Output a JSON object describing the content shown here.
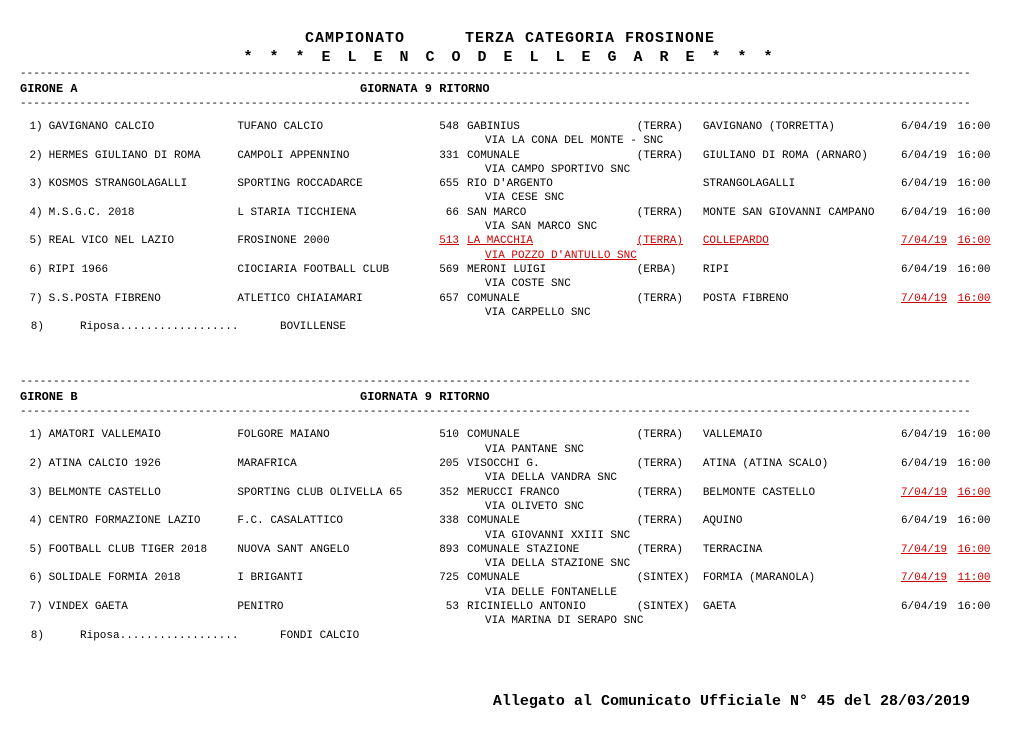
{
  "header": {
    "title_left": "CAMPIONATO",
    "title_right": "TERZA CATEGORIA FROSINONE",
    "subtitle": "* * * E L E N C O    D E L L E    G A R E * * *"
  },
  "dash": "------------------------------------------------------------------------------------------------------------------------------------------------",
  "footer": "Allegato al Comunicato Ufficiale N° 45 del 28/03/2019",
  "groups": [
    {
      "name": "GIRONE  A",
      "round": "GIORNATA  9 RITORNO",
      "matches": [
        {
          "n": "1)",
          "home": "GAVIGNANO CALCIO",
          "away": "TUFANO CALCIO",
          "code": "548",
          "venue": "GABINIUS",
          "surf": "(TERRA)",
          "city": "GAVIGNANO (TORRETTA)",
          "date": "6/04/19",
          "time": "16:00",
          "addr": "VIA LA CONA DEL MONTE - SNC",
          "hl": false,
          "hl_addr": false
        },
        {
          "n": "2)",
          "home": "HERMES GIULIANO DI ROMA",
          "away": "CAMPOLI APPENNINO",
          "code": "331",
          "venue": "COMUNALE",
          "surf": "(TERRA)",
          "city": "GIULIANO DI ROMA (ARNARO)",
          "date": "6/04/19",
          "time": "16:00",
          "addr": "VIA CAMPO SPORTIVO SNC",
          "hl": false,
          "hl_addr": false
        },
        {
          "n": "3)",
          "home": "KOSMOS STRANGOLAGALLI",
          "away": "SPORTING ROCCADARCE",
          "code": "655",
          "venue": "RIO D'ARGENTO",
          "surf": "",
          "city": "STRANGOLAGALLI",
          "date": "6/04/19",
          "time": "16:00",
          "addr": "VIA CESE SNC",
          "hl": false,
          "hl_addr": false
        },
        {
          "n": "4)",
          "home": "M.S.G.C. 2018",
          "away": "L STARIA TICCHIENA",
          "code": "66",
          "venue": "SAN MARCO",
          "surf": "(TERRA)",
          "city": "MONTE SAN GIOVANNI CAMPANO",
          "date": "6/04/19",
          "time": "16:00",
          "addr": "VIA SAN MARCO SNC",
          "hl": false,
          "hl_addr": false
        },
        {
          "n": "5)",
          "home": "REAL VICO NEL LAZIO",
          "away": "FROSINONE 2000",
          "code": "513",
          "venue": "LA MACCHIA",
          "surf": "(TERRA)",
          "city": "COLLEPARDO",
          "date": "7/04/19",
          "time": "16:00",
          "addr": "VIA POZZO D'ANTULLO SNC",
          "hl": true,
          "hl_addr": true
        },
        {
          "n": "6)",
          "home": "RIPI 1966",
          "away": "CIOCIARIA FOOTBALL CLUB",
          "code": "569",
          "venue": "MERONI LUIGI",
          "surf": "(ERBA)",
          "city": "RIPI",
          "date": "6/04/19",
          "time": "16:00",
          "addr": "VIA COSTE SNC",
          "hl": false,
          "hl_addr": false
        },
        {
          "n": "7)",
          "home": "S.S.POSTA FIBRENO",
          "away": "ATLETICO CHIAIAMARI",
          "code": "657",
          "venue": "COMUNALE",
          "surf": "(TERRA)",
          "city": "POSTA FIBRENO",
          "date": "7/04/19",
          "time": "16:00",
          "addr": "VIA CARPELLO SNC",
          "hl": false,
          "hl_addr": false,
          "hl_dt": true
        }
      ],
      "riposa": {
        "n": "8)",
        "label": "Riposa..................",
        "team": "BOVILLENSE"
      }
    },
    {
      "name": "GIRONE  B",
      "round": "GIORNATA  9 RITORNO",
      "matches": [
        {
          "n": "1)",
          "home": "AMATORI VALLEMAIO",
          "away": "FOLGORE MAIANO",
          "code": "510",
          "venue": "COMUNALE",
          "surf": "(TERRA)",
          "city": "VALLEMAIO",
          "date": "6/04/19",
          "time": "16:00",
          "addr": "VIA PANTANE SNC",
          "hl": false,
          "hl_addr": false
        },
        {
          "n": "2)",
          "home": "ATINA CALCIO 1926",
          "away": "MARAFRICA",
          "code": "205",
          "venue": "VISOCCHI G.",
          "surf": "(TERRA)",
          "city": "ATINA (ATINA SCALO)",
          "date": "6/04/19",
          "time": "16:00",
          "addr": "VIA DELLA VANDRA SNC",
          "hl": false,
          "hl_addr": false
        },
        {
          "n": "3)",
          "home": "BELMONTE CASTELLO",
          "away": "SPORTING CLUB OLIVELLA 65",
          "code": "352",
          "venue": "MERUCCI FRANCO",
          "surf": "(TERRA)",
          "city": "BELMONTE CASTELLO",
          "date": "7/04/19",
          "time": "16:00",
          "addr": "VIA OLIVETO SNC",
          "hl": false,
          "hl_addr": false,
          "hl_dt": true
        },
        {
          "n": "4)",
          "home": "CENTRO FORMAZIONE LAZIO",
          "away": "F.C. CASALATTICO",
          "code": "338",
          "venue": "COMUNALE",
          "surf": "(TERRA)",
          "city": "AQUINO",
          "date": "6/04/19",
          "time": "16:00",
          "addr": "VIA GIOVANNI XXIII SNC",
          "hl": false,
          "hl_addr": false
        },
        {
          "n": "5)",
          "home": "FOOTBALL CLUB TIGER 2018",
          "away": "NUOVA SANT ANGELO",
          "code": "893",
          "venue": "COMUNALE STAZIONE",
          "surf": "(TERRA)",
          "city": "TERRACINA",
          "date": "7/04/19",
          "time": "16:00",
          "addr": "VIA DELLA STAZIONE SNC",
          "hl": false,
          "hl_addr": false,
          "hl_dt": true
        },
        {
          "n": "6)",
          "home": "SOLIDALE FORMIA 2018",
          "away": "I BRIGANTI",
          "code": "725",
          "venue": "COMUNALE",
          "surf": "(SINTEX)",
          "city": "FORMIA (MARANOLA)",
          "date": "7/04/19",
          "time": "11:00",
          "addr": "VIA DELLE FONTANELLE",
          "hl": false,
          "hl_addr": false,
          "hl_dt": true
        },
        {
          "n": "7)",
          "home": "VINDEX GAETA",
          "away": "PENITRO",
          "code": "53",
          "venue": "RICINIELLO ANTONIO",
          "surf": "(SINTEX)",
          "city": "GAETA",
          "date": "6/04/19",
          "time": "16:00",
          "addr": "VIA MARINA DI SERAPO SNC",
          "hl": false,
          "hl_addr": false
        }
      ],
      "riposa": {
        "n": "8)",
        "label": "Riposa..................",
        "team": "FONDI CALCIO"
      }
    }
  ]
}
